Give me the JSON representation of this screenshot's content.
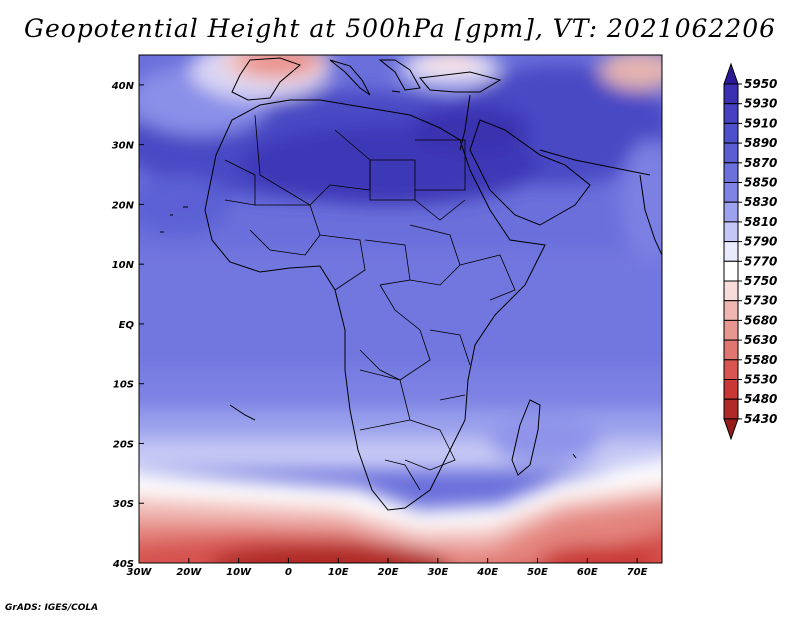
{
  "title": "Geopotential Height at 500hPa [gpm], VT: 2021062206",
  "credit": "GrADS: IGES/COLA",
  "lon_ticks": [
    "30W",
    "20W",
    "10W",
    "0",
    "10E",
    "20E",
    "30E",
    "40E",
    "50E",
    "60E",
    "70E"
  ],
  "lat_ticks": [
    "40N",
    "30N",
    "20N",
    "10N",
    "EQ",
    "10S",
    "20S",
    "30S",
    "40S"
  ],
  "colorbar": {
    "levels": [
      "5950",
      "5930",
      "5910",
      "5890",
      "5870",
      "5850",
      "5830",
      "5810",
      "5790",
      "5770",
      "5750",
      "5730",
      "5680",
      "5630",
      "5580",
      "5530",
      "5480",
      "5430"
    ],
    "colors": [
      "#2a1a96",
      "#3a30b0",
      "#4541c0",
      "#4e4fca",
      "#5a5ed2",
      "#6c70dc",
      "#7e83e4",
      "#9da2ee",
      "#c4c7f6",
      "#e9eafc",
      "#ffffff",
      "#f7dcda",
      "#f0b6b2",
      "#e89690",
      "#e07670",
      "#d85552",
      "#c93836",
      "#b02a28",
      "#961c1c"
    ]
  },
  "map_extent": {
    "lon": [
      -30,
      75
    ],
    "lat": [
      -40,
      45
    ]
  }
}
